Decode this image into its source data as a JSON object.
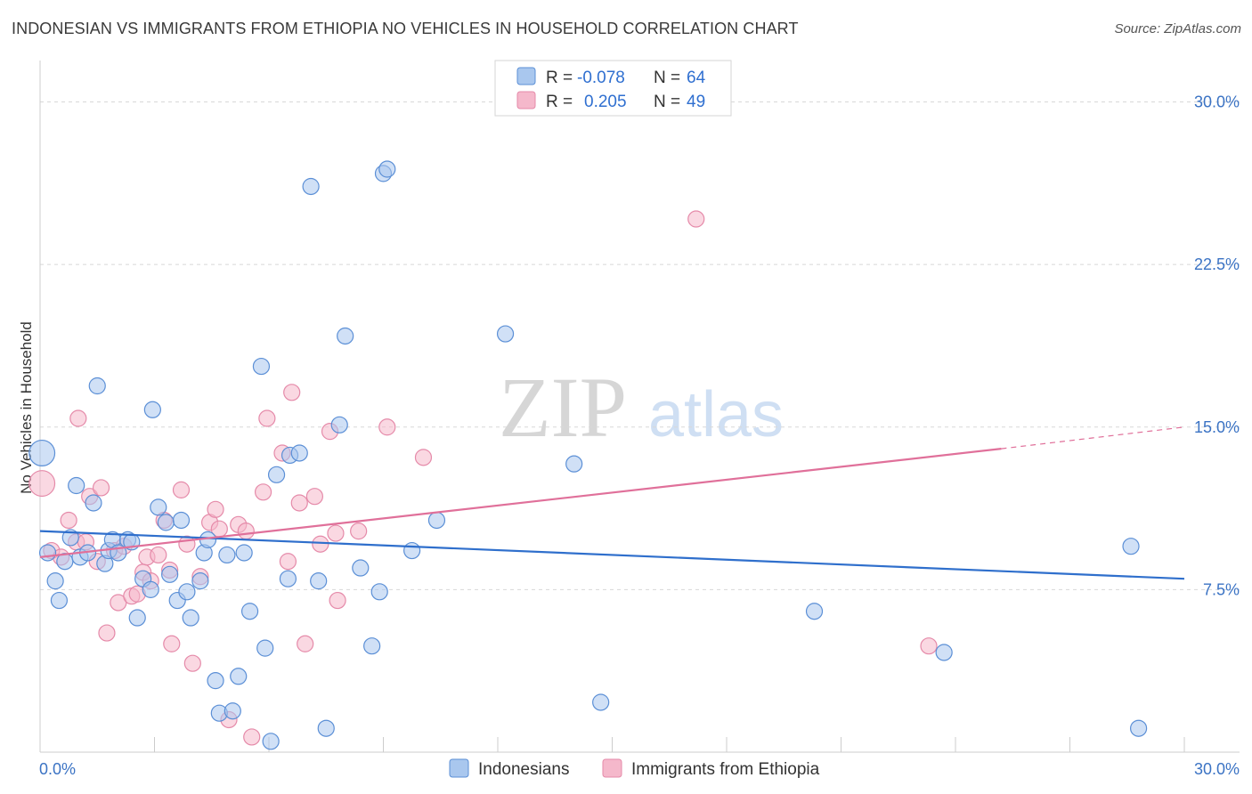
{
  "header": {
    "title": "INDONESIAN VS IMMIGRANTS FROM ETHIOPIA NO VEHICLES IN HOUSEHOLD CORRELATION CHART",
    "source": "Source: ZipAtlas.com"
  },
  "watermark": {
    "zip": "ZIP",
    "atlas": "atlas"
  },
  "colors": {
    "blue_fill": "#a9c7ee",
    "blue_stroke": "#5b8fd6",
    "blue_line": "#2f6fcc",
    "pink_fill": "#f5b8cb",
    "pink_stroke": "#e58aa9",
    "pink_line": "#e0709a",
    "grid": "#d8d8d8",
    "axis_label": "#3b73c4"
  },
  "chart_data": {
    "type": "scatter",
    "title": "INDONESIAN VS IMMIGRANTS FROM ETHIOPIA NO VEHICLES IN HOUSEHOLD CORRELATION CHART",
    "xlabel": "",
    "ylabel": "No Vehicles in Household",
    "xlim": [
      0,
      30
    ],
    "ylim": [
      0,
      31.5
    ],
    "x_tick_labels": [
      "0.0%",
      "30.0%"
    ],
    "y_ticks": [
      7.5,
      15.0,
      22.5,
      30.0
    ],
    "y_tick_labels": [
      "7.5%",
      "15.0%",
      "22.5%",
      "30.0%"
    ],
    "grid": true,
    "legend": [
      {
        "r_label": "R =",
        "r_value": "-0.078",
        "n_label": "N =",
        "n_value": "64"
      },
      {
        "r_label": "R =",
        "r_value": "0.205",
        "n_label": "N =",
        "n_value": "49"
      }
    ],
    "series": [
      {
        "name": "Indonesians",
        "color": "blue",
        "trend": {
          "x": [
            0,
            30
          ],
          "y": [
            10.2,
            8.0
          ]
        },
        "points": [
          {
            "x": 0.05,
            "y": 13.8,
            "s": 1.6
          },
          {
            "x": 0.2,
            "y": 9.2
          },
          {
            "x": 0.4,
            "y": 7.9
          },
          {
            "x": 0.5,
            "y": 7.0
          },
          {
            "x": 0.65,
            "y": 8.8
          },
          {
            "x": 0.8,
            "y": 9.9
          },
          {
            "x": 0.95,
            "y": 12.3
          },
          {
            "x": 1.05,
            "y": 9.0
          },
          {
            "x": 1.25,
            "y": 9.2
          },
          {
            "x": 1.4,
            "y": 11.5
          },
          {
            "x": 1.5,
            "y": 16.9
          },
          {
            "x": 1.7,
            "y": 8.7
          },
          {
            "x": 1.8,
            "y": 9.3
          },
          {
            "x": 1.9,
            "y": 9.8
          },
          {
            "x": 2.05,
            "y": 9.2
          },
          {
            "x": 2.3,
            "y": 9.8
          },
          {
            "x": 2.4,
            "y": 9.7
          },
          {
            "x": 2.55,
            "y": 6.2
          },
          {
            "x": 2.7,
            "y": 8.0
          },
          {
            "x": 2.9,
            "y": 7.5
          },
          {
            "x": 2.95,
            "y": 15.8
          },
          {
            "x": 3.1,
            "y": 11.3
          },
          {
            "x": 3.3,
            "y": 10.6
          },
          {
            "x": 3.4,
            "y": 8.2
          },
          {
            "x": 3.6,
            "y": 7.0
          },
          {
            "x": 3.7,
            "y": 10.7
          },
          {
            "x": 3.85,
            "y": 7.4
          },
          {
            "x": 3.95,
            "y": 6.2
          },
          {
            "x": 4.2,
            "y": 7.9
          },
          {
            "x": 4.3,
            "y": 9.2
          },
          {
            "x": 4.4,
            "y": 9.8
          },
          {
            "x": 4.6,
            "y": 3.3
          },
          {
            "x": 4.7,
            "y": 1.8
          },
          {
            "x": 4.9,
            "y": 9.1
          },
          {
            "x": 5.05,
            "y": 1.9
          },
          {
            "x": 5.2,
            "y": 3.5
          },
          {
            "x": 5.35,
            "y": 9.2
          },
          {
            "x": 5.5,
            "y": 6.5
          },
          {
            "x": 5.8,
            "y": 17.8
          },
          {
            "x": 5.9,
            "y": 4.8
          },
          {
            "x": 6.05,
            "y": 0.5
          },
          {
            "x": 6.2,
            "y": 12.8
          },
          {
            "x": 6.5,
            "y": 8.0
          },
          {
            "x": 6.55,
            "y": 13.7
          },
          {
            "x": 6.8,
            "y": 13.8
          },
          {
            "x": 7.1,
            "y": 26.1
          },
          {
            "x": 7.3,
            "y": 7.9
          },
          {
            "x": 7.5,
            "y": 1.1
          },
          {
            "x": 7.85,
            "y": 15.1
          },
          {
            "x": 8.0,
            "y": 19.2
          },
          {
            "x": 8.4,
            "y": 8.5
          },
          {
            "x": 8.7,
            "y": 4.9
          },
          {
            "x": 8.9,
            "y": 7.4
          },
          {
            "x": 9.0,
            "y": 26.7
          },
          {
            "x": 9.1,
            "y": 26.9
          },
          {
            "x": 9.75,
            "y": 9.3
          },
          {
            "x": 10.4,
            "y": 10.7
          },
          {
            "x": 12.2,
            "y": 19.3
          },
          {
            "x": 14.0,
            "y": 13.3
          },
          {
            "x": 14.7,
            "y": 2.3
          },
          {
            "x": 20.3,
            "y": 6.5
          },
          {
            "x": 23.7,
            "y": 4.6
          },
          {
            "x": 28.6,
            "y": 9.5
          },
          {
            "x": 28.8,
            "y": 1.1
          }
        ]
      },
      {
        "name": "Immigrants from Ethiopia",
        "color": "pink",
        "trend": {
          "x": [
            0,
            25.2
          ],
          "y": [
            9.0,
            14.0
          ],
          "dash_to": [
            30,
            15.0
          ]
        },
        "points": [
          {
            "x": 0.05,
            "y": 12.4,
            "s": 1.6
          },
          {
            "x": 0.3,
            "y": 9.3
          },
          {
            "x": 0.55,
            "y": 9.0
          },
          {
            "x": 0.75,
            "y": 10.7
          },
          {
            "x": 0.95,
            "y": 9.7
          },
          {
            "x": 1.0,
            "y": 15.4
          },
          {
            "x": 1.2,
            "y": 9.7
          },
          {
            "x": 1.3,
            "y": 11.8
          },
          {
            "x": 1.5,
            "y": 8.8
          },
          {
            "x": 1.6,
            "y": 12.2
          },
          {
            "x": 1.75,
            "y": 5.5
          },
          {
            "x": 1.95,
            "y": 9.3
          },
          {
            "x": 2.05,
            "y": 6.9
          },
          {
            "x": 2.2,
            "y": 9.5
          },
          {
            "x": 2.4,
            "y": 7.2
          },
          {
            "x": 2.55,
            "y": 7.3
          },
          {
            "x": 2.7,
            "y": 8.3
          },
          {
            "x": 2.8,
            "y": 9.0
          },
          {
            "x": 2.9,
            "y": 7.9
          },
          {
            "x": 3.1,
            "y": 9.1
          },
          {
            "x": 3.25,
            "y": 10.7
          },
          {
            "x": 3.4,
            "y": 8.4
          },
          {
            "x": 3.45,
            "y": 5.0
          },
          {
            "x": 3.7,
            "y": 12.1
          },
          {
            "x": 3.85,
            "y": 9.6
          },
          {
            "x": 4.0,
            "y": 4.1
          },
          {
            "x": 4.2,
            "y": 8.1
          },
          {
            "x": 4.45,
            "y": 10.6
          },
          {
            "x": 4.6,
            "y": 11.2
          },
          {
            "x": 4.7,
            "y": 10.3
          },
          {
            "x": 4.95,
            "y": 1.5
          },
          {
            "x": 5.2,
            "y": 10.5
          },
          {
            "x": 5.4,
            "y": 10.2
          },
          {
            "x": 5.55,
            "y": 0.7
          },
          {
            "x": 5.85,
            "y": 12.0
          },
          {
            "x": 5.95,
            "y": 15.4
          },
          {
            "x": 6.35,
            "y": 13.8
          },
          {
            "x": 6.5,
            "y": 8.8
          },
          {
            "x": 6.6,
            "y": 16.6
          },
          {
            "x": 6.8,
            "y": 11.5
          },
          {
            "x": 6.95,
            "y": 5.0
          },
          {
            "x": 7.2,
            "y": 11.8
          },
          {
            "x": 7.35,
            "y": 9.6
          },
          {
            "x": 7.6,
            "y": 14.8
          },
          {
            "x": 7.75,
            "y": 10.1
          },
          {
            "x": 7.8,
            "y": 7.0
          },
          {
            "x": 8.35,
            "y": 10.2
          },
          {
            "x": 9.1,
            "y": 15.0
          },
          {
            "x": 10.05,
            "y": 13.6
          },
          {
            "x": 17.2,
            "y": 24.6
          },
          {
            "x": 23.3,
            "y": 4.9
          }
        ]
      }
    ]
  },
  "bottom_legend": {
    "series1": "Indonesians",
    "series2": "Immigrants from Ethiopia"
  }
}
